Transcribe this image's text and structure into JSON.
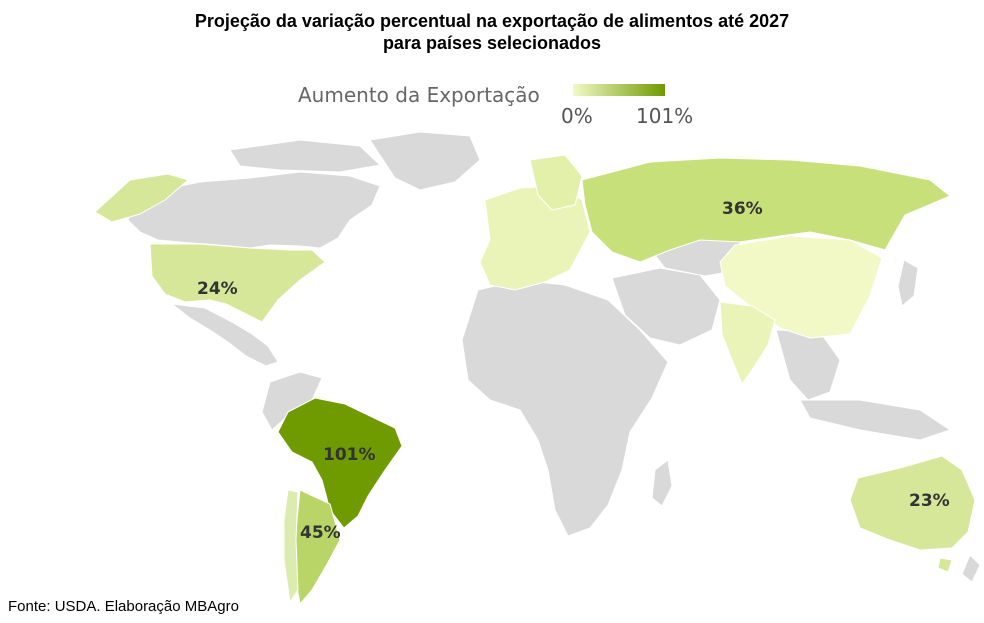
{
  "title_line1": "Projeção da variação percentual na exportação de alimentos até 2027",
  "title_line2": "para países selecionados",
  "legend": {
    "title": "Aumento da Exportação",
    "min_label": "0%",
    "max_label": "101%",
    "min_color": "#f2f9c7",
    "max_color": "#6f9a00"
  },
  "countries": {
    "usa": {
      "label": "24%",
      "value": 24
    },
    "russia": {
      "label": "36%",
      "value": 36
    },
    "brazil": {
      "label": "101%",
      "value": 101
    },
    "argentina": {
      "label": "45%",
      "value": 45
    },
    "australia": {
      "label": "23%",
      "value": 23
    }
  },
  "colors": {
    "other_land": "#d9d9d9",
    "border": "#ffffff"
  },
  "source": "Fonte: USDA. Elaboração MBAgro"
}
